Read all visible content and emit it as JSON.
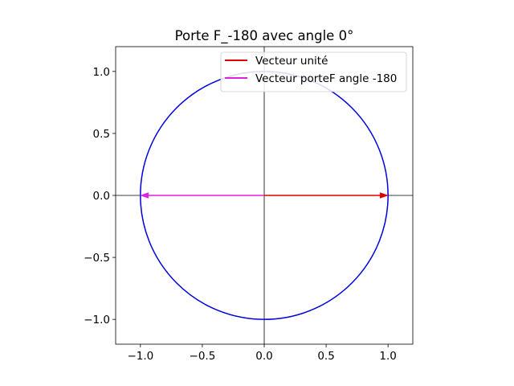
{
  "chart_data": {
    "type": "line",
    "title": "Porte F_-180 avec angle 0°",
    "xlabel": "",
    "ylabel": "",
    "xlim": [
      -1.2,
      1.2
    ],
    "ylim": [
      -1.2,
      1.2
    ],
    "xticks": [
      -1.0,
      -0.5,
      0.0,
      0.5,
      1.0
    ],
    "xtick_labels": [
      "−1.0",
      "−0.5",
      "0.0",
      "0.5",
      "1.0"
    ],
    "yticks": [
      -1.0,
      -0.5,
      0.0,
      0.5,
      1.0
    ],
    "ytick_labels": [
      "−1.0",
      "−0.5",
      "0.0",
      "0.5",
      "1.0"
    ],
    "grid": false,
    "legend_position": "upper-right",
    "unit_circle": {
      "center": [
        0,
        0
      ],
      "radius": 1,
      "color": "#0000dd"
    },
    "axes_lines": {
      "x": 0,
      "y": 0,
      "color": "#000000"
    },
    "series": [
      {
        "name": "Vecteur unité",
        "color": "#e00000",
        "from": [
          0,
          0
        ],
        "to": [
          1,
          0
        ]
      },
      {
        "name": "Vecteur porteF angle -180",
        "color": "#dd22dd",
        "from": [
          0,
          0
        ],
        "to": [
          -1,
          0
        ]
      }
    ]
  }
}
